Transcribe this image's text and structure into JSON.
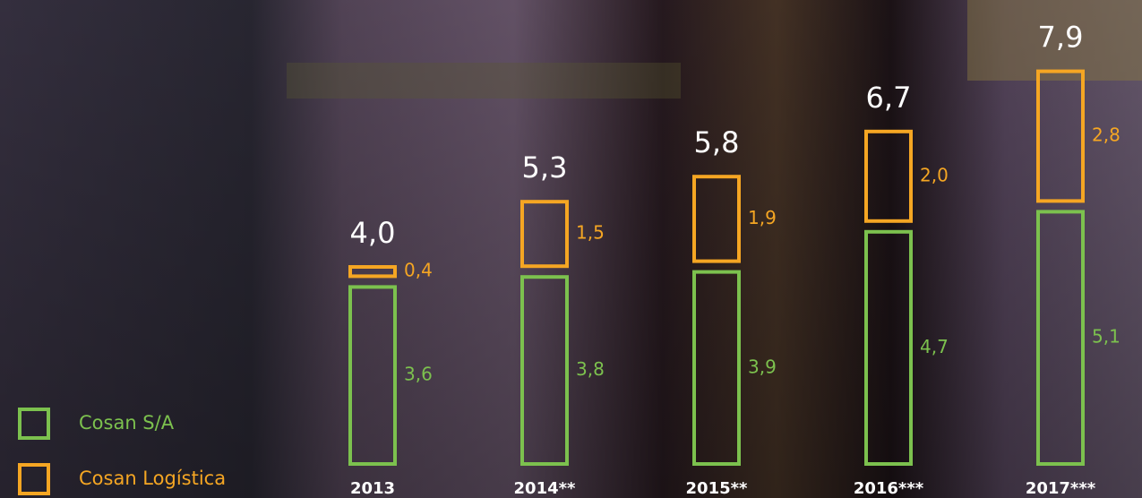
{
  "chart_data": {
    "type": "stacked-bar",
    "categories": [
      "2013",
      "2014**",
      "2015**",
      "2016***",
      "2017***"
    ],
    "series": [
      {
        "name": "Cosan S/A",
        "color": "#7cc14e",
        "values": [
          3.6,
          3.8,
          3.9,
          4.7,
          5.1
        ],
        "value_labels": [
          "3,6",
          "3,8",
          "3,9",
          "4,7",
          "5,1"
        ]
      },
      {
        "name": "Cosan Logística",
        "color": "#f5a623",
        "values": [
          0.4,
          1.5,
          1.9,
          2.0,
          2.8
        ],
        "value_labels": [
          "0,4",
          "1,5",
          "1,9",
          "2,0",
          "2,8"
        ]
      }
    ],
    "totals": [
      4.0,
      5.3,
      5.8,
      6.7,
      7.9
    ],
    "total_labels": [
      "4,0",
      "5,3",
      "5,8",
      "6,7",
      "7,9"
    ],
    "ylim": [
      0,
      9
    ]
  }
}
